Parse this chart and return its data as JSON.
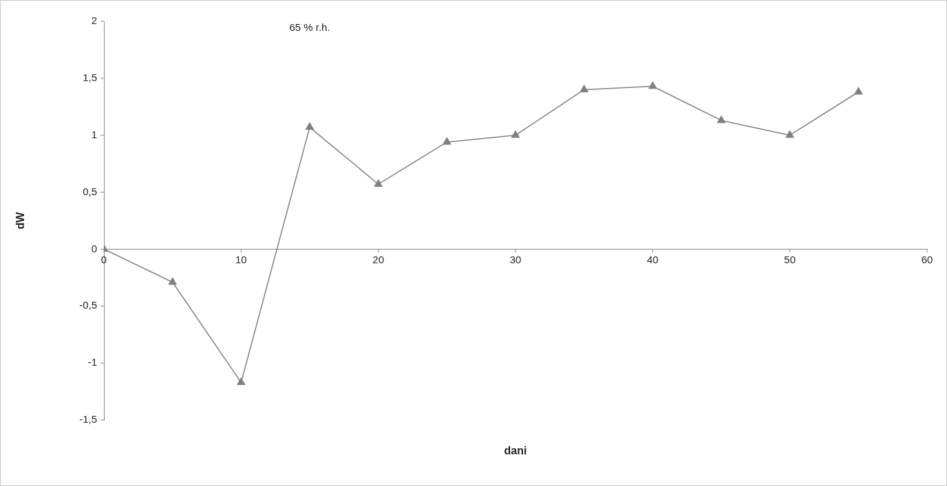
{
  "chart_data": {
    "type": "line",
    "annotations": [
      "65 % r.h."
    ],
    "xlabel": "dani",
    "ylabel": "dW",
    "x": [
      0,
      5,
      10,
      15,
      20,
      25,
      30,
      35,
      40,
      45,
      50,
      55
    ],
    "series": [
      {
        "color": "#808080",
        "values": [
          0,
          -0.29,
          -1.17,
          1.07,
          0.57,
          0.94,
          1.0,
          1.4,
          1.43,
          1.13,
          1.0,
          1.38
        ]
      }
    ],
    "xlim": [
      0,
      60
    ],
    "xticks": [
      0,
      10,
      20,
      30,
      40,
      50,
      60
    ],
    "ylim": [
      -1.5,
      2
    ],
    "yticks": [
      {
        "value": -1.5,
        "label": "-1,5"
      },
      -1,
      {
        "value": -0.5,
        "label": "-0,5"
      },
      0,
      {
        "value": 0.5,
        "label": "0,5"
      },
      1,
      {
        "value": 1.5,
        "label": "1,5"
      },
      2
    ],
    "grid": false,
    "legend": false,
    "marker": "triangle",
    "line_style": "solid"
  }
}
